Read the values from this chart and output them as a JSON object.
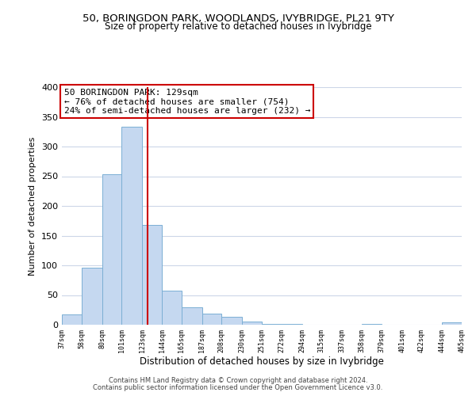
{
  "title1": "50, BORINGDON PARK, WOODLANDS, IVYBRIDGE, PL21 9TY",
  "title2": "Size of property relative to detached houses in Ivybridge",
  "xlabel": "Distribution of detached houses by size in Ivybridge",
  "ylabel": "Number of detached properties",
  "bins": [
    37,
    58,
    80,
    101,
    123,
    144,
    165,
    187,
    208,
    230,
    251,
    272,
    294,
    315,
    337,
    358,
    379,
    401,
    422,
    444,
    465
  ],
  "counts": [
    18,
    96,
    254,
    333,
    168,
    58,
    30,
    19,
    13,
    5,
    1,
    1,
    0,
    0,
    0,
    1,
    0,
    0,
    0,
    4
  ],
  "bar_color": "#c5d8f0",
  "bar_edge_color": "#7bafd4",
  "vline_x": 129,
  "vline_color": "#cc0000",
  "annotation_title": "50 BORINGDON PARK: 129sqm",
  "annotation_line1": "← 76% of detached houses are smaller (754)",
  "annotation_line2": "24% of semi-detached houses are larger (232) →",
  "annotation_box_color": "#ffffff",
  "annotation_box_edge": "#cc0000",
  "ylim": [
    0,
    400
  ],
  "yticks": [
    0,
    50,
    100,
    150,
    200,
    250,
    300,
    350,
    400
  ],
  "footer1": "Contains HM Land Registry data © Crown copyright and database right 2024.",
  "footer2": "Contains public sector information licensed under the Open Government Licence v3.0.",
  "bg_color": "#ffffff",
  "grid_color": "#ccd6e8"
}
